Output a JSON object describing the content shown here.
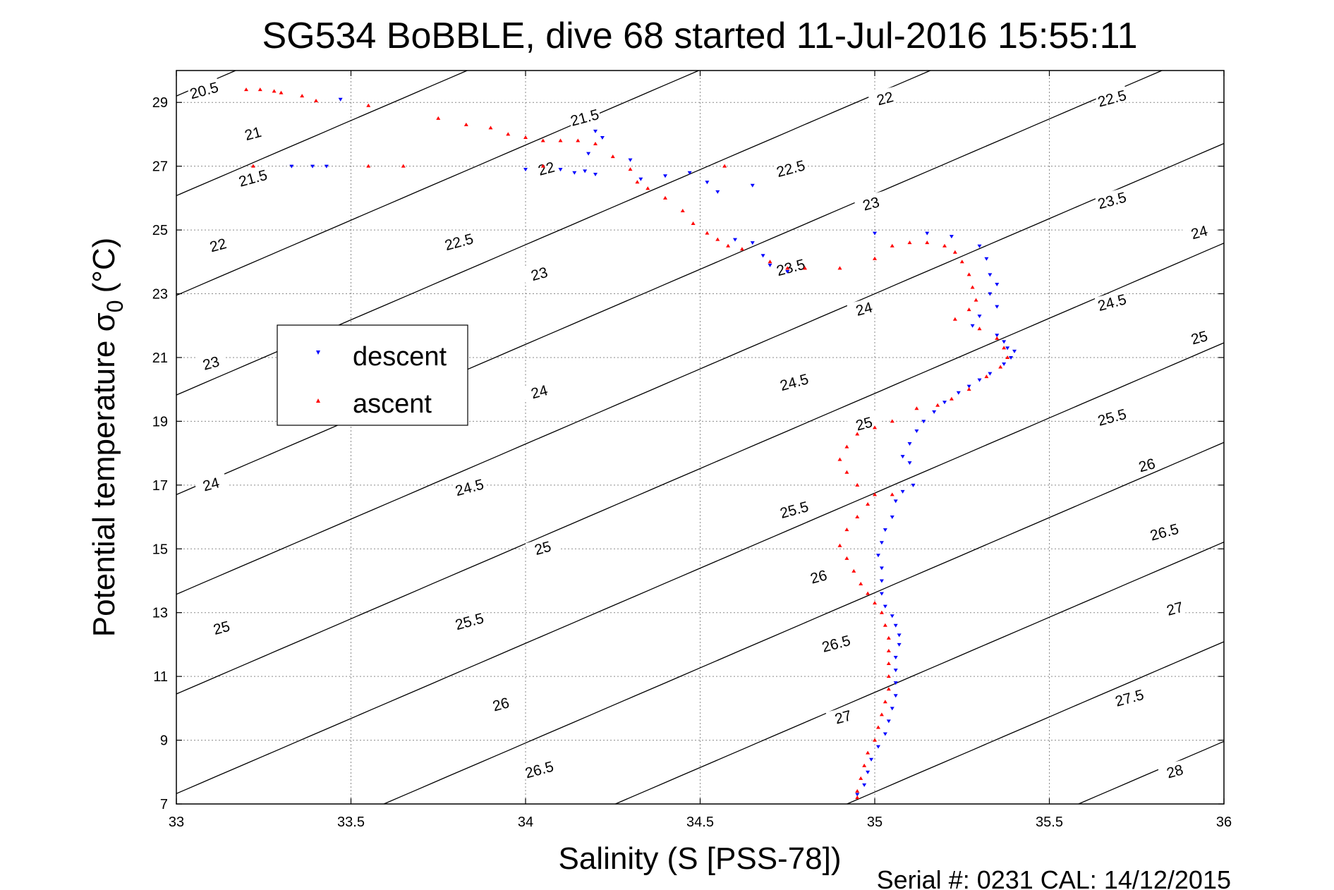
{
  "chart_data": {
    "type": "scatter",
    "title": "SG534 BoBBLE, dive 68 started 11-Jul-2016 15:55:11",
    "xlabel": "Salinity (S [PSS-78])",
    "ylabel_main": "Potential temperature σ",
    "ylabel_sub": "0",
    "ylabel_unit": "(°C)",
    "xlim": [
      33,
      36
    ],
    "ylim": [
      7,
      30
    ],
    "x_ticks": [
      33,
      33.5,
      34,
      34.5,
      35,
      35.5,
      36
    ],
    "x_tick_labels": [
      "33",
      "33.5",
      "34",
      "34.5",
      "35",
      "35.5",
      "36"
    ],
    "y_ticks": [
      7,
      9,
      11,
      13,
      15,
      17,
      19,
      21,
      23,
      25,
      27,
      29
    ],
    "y_tick_labels": [
      "7",
      "9",
      "11",
      "13",
      "15",
      "17",
      "19",
      "21",
      "23",
      "25",
      "27",
      "29"
    ],
    "grid": true,
    "legend_position": "middle-left",
    "footer": "Serial #: 0231  CAL: 14/12/2015",
    "density_contours": {
      "levels": [
        20.5,
        21,
        21.5,
        22,
        22.5,
        23,
        23.5,
        24,
        24.5,
        25,
        25.5,
        26,
        26.5,
        27,
        27.5,
        28
      ],
      "labels": [
        {
          "text": "20.5",
          "s": 33.08,
          "t": 29.35
        },
        {
          "text": "21",
          "s": 33.22,
          "t": 28.0
        },
        {
          "text": "21.5",
          "s": 33.22,
          "t": 26.6
        },
        {
          "text": "22",
          "s": 33.12,
          "t": 24.5
        },
        {
          "text": "23",
          "s": 33.1,
          "t": 20.8
        },
        {
          "text": "24",
          "s": 33.1,
          "t": 17.0
        },
        {
          "text": "25",
          "s": 33.13,
          "t": 12.5
        },
        {
          "text": "21.5",
          "s": 34.17,
          "t": 28.5
        },
        {
          "text": "22",
          "s": 34.06,
          "t": 26.9
        },
        {
          "text": "22.5",
          "s": 33.81,
          "t": 24.6
        },
        {
          "text": "23",
          "s": 34.04,
          "t": 23.6
        },
        {
          "text": "24",
          "s": 34.04,
          "t": 19.9
        },
        {
          "text": "24.5",
          "s": 33.84,
          "t": 16.9
        },
        {
          "text": "25",
          "s": 34.05,
          "t": 15.0
        },
        {
          "text": "25.5",
          "s": 33.84,
          "t": 12.7
        },
        {
          "text": "26",
          "s": 33.93,
          "t": 10.1
        },
        {
          "text": "26.5",
          "s": 34.04,
          "t": 8.05
        },
        {
          "text": "22",
          "s": 35.03,
          "t": 29.1
        },
        {
          "text": "22.5",
          "s": 34.76,
          "t": 26.9
        },
        {
          "text": "23",
          "s": 34.99,
          "t": 25.8
        },
        {
          "text": "23.5",
          "s": 34.76,
          "t": 23.8
        },
        {
          "text": "24",
          "s": 34.97,
          "t": 22.5
        },
        {
          "text": "24.5",
          "s": 34.77,
          "t": 20.2
        },
        {
          "text": "25",
          "s": 34.97,
          "t": 18.9
        },
        {
          "text": "25.5",
          "s": 34.77,
          "t": 16.2
        },
        {
          "text": "26",
          "s": 34.84,
          "t": 14.1
        },
        {
          "text": "26.5",
          "s": 34.89,
          "t": 12.0
        },
        {
          "text": "27",
          "s": 34.91,
          "t": 9.7
        },
        {
          "text": "22.5",
          "s": 35.68,
          "t": 29.1
        },
        {
          "text": "23.5",
          "s": 35.68,
          "t": 25.9
        },
        {
          "text": "24",
          "s": 35.93,
          "t": 24.9
        },
        {
          "text": "24.5",
          "s": 35.68,
          "t": 22.7
        },
        {
          "text": "25",
          "s": 35.93,
          "t": 21.6
        },
        {
          "text": "25.5",
          "s": 35.68,
          "t": 19.1
        },
        {
          "text": "26",
          "s": 35.78,
          "t": 17.6
        },
        {
          "text": "26.5",
          "s": 35.83,
          "t": 15.5
        },
        {
          "text": "27",
          "s": 35.86,
          "t": 13.1
        },
        {
          "text": "27.5",
          "s": 35.73,
          "t": 10.3
        },
        {
          "text": "28",
          "s": 35.86,
          "t": 8.0
        }
      ]
    },
    "series": [
      {
        "name": "descent",
        "color": "#0000ff",
        "marker": "triangle-down",
        "points": [
          [
            33.47,
            29.1
          ],
          [
            33.33,
            27.0
          ],
          [
            33.39,
            27.0
          ],
          [
            33.43,
            27.0
          ],
          [
            34.0,
            26.9
          ],
          [
            34.2,
            28.1
          ],
          [
            34.22,
            27.9
          ],
          [
            34.18,
            27.4
          ],
          [
            34.1,
            26.9
          ],
          [
            34.14,
            26.8
          ],
          [
            34.17,
            26.85
          ],
          [
            34.2,
            26.75
          ],
          [
            34.3,
            27.2
          ],
          [
            34.33,
            26.6
          ],
          [
            34.4,
            26.7
          ],
          [
            34.47,
            26.8
          ],
          [
            34.52,
            26.5
          ],
          [
            34.55,
            26.2
          ],
          [
            34.65,
            26.4
          ],
          [
            34.6,
            24.7
          ],
          [
            34.65,
            24.6
          ],
          [
            34.68,
            24.2
          ],
          [
            34.7,
            23.9
          ],
          [
            34.75,
            23.7
          ],
          [
            35.0,
            24.9
          ],
          [
            35.15,
            24.9
          ],
          [
            35.22,
            24.8
          ],
          [
            35.3,
            24.5
          ],
          [
            35.32,
            24.1
          ],
          [
            35.33,
            23.6
          ],
          [
            35.35,
            23.3
          ],
          [
            35.33,
            23.0
          ],
          [
            35.35,
            22.6
          ],
          [
            35.3,
            22.3
          ],
          [
            35.28,
            22.0
          ],
          [
            35.35,
            21.7
          ],
          [
            35.37,
            21.5
          ],
          [
            35.38,
            21.3
          ],
          [
            35.4,
            21.2
          ],
          [
            35.39,
            21.0
          ],
          [
            35.37,
            20.8
          ],
          [
            35.33,
            20.5
          ],
          [
            35.3,
            20.3
          ],
          [
            35.27,
            20.1
          ],
          [
            35.24,
            19.9
          ],
          [
            35.2,
            19.6
          ],
          [
            35.17,
            19.3
          ],
          [
            35.14,
            19.0
          ],
          [
            35.12,
            18.7
          ],
          [
            35.1,
            18.3
          ],
          [
            35.08,
            17.9
          ],
          [
            35.1,
            17.7
          ],
          [
            35.11,
            17.0
          ],
          [
            35.08,
            16.8
          ],
          [
            35.06,
            16.5
          ],
          [
            35.05,
            16.0
          ],
          [
            35.03,
            15.6
          ],
          [
            35.02,
            15.2
          ],
          [
            35.01,
            14.8
          ],
          [
            35.02,
            14.4
          ],
          [
            35.02,
            14.0
          ],
          [
            35.02,
            13.6
          ],
          [
            35.03,
            13.2
          ],
          [
            35.05,
            12.9
          ],
          [
            35.06,
            12.6
          ],
          [
            35.07,
            12.3
          ],
          [
            35.07,
            12.0
          ],
          [
            35.06,
            11.6
          ],
          [
            35.06,
            11.2
          ],
          [
            35.06,
            10.8
          ],
          [
            35.06,
            10.4
          ],
          [
            35.05,
            10.0
          ],
          [
            35.04,
            9.6
          ],
          [
            35.03,
            9.2
          ],
          [
            35.01,
            8.8
          ],
          [
            34.99,
            8.4
          ],
          [
            34.98,
            8.0
          ],
          [
            34.97,
            7.6
          ],
          [
            34.95,
            7.3
          ]
        ]
      },
      {
        "name": "ascent",
        "color": "#ff0000",
        "marker": "triangle-up",
        "points": [
          [
            33.2,
            29.4
          ],
          [
            33.24,
            29.4
          ],
          [
            33.28,
            29.35
          ],
          [
            33.3,
            29.3
          ],
          [
            33.36,
            29.2
          ],
          [
            33.4,
            29.05
          ],
          [
            33.55,
            28.9
          ],
          [
            33.75,
            28.5
          ],
          [
            33.83,
            28.3
          ],
          [
            33.9,
            28.2
          ],
          [
            33.95,
            28.0
          ],
          [
            34.0,
            27.9
          ],
          [
            34.05,
            27.8
          ],
          [
            34.1,
            27.8
          ],
          [
            34.15,
            27.8
          ],
          [
            34.2,
            27.7
          ],
          [
            34.25,
            27.3
          ],
          [
            34.3,
            26.9
          ],
          [
            34.32,
            26.5
          ],
          [
            34.35,
            26.3
          ],
          [
            34.4,
            26.0
          ],
          [
            34.45,
            25.6
          ],
          [
            34.48,
            25.2
          ],
          [
            34.52,
            24.9
          ],
          [
            34.55,
            24.7
          ],
          [
            34.58,
            24.5
          ],
          [
            34.62,
            24.4
          ],
          [
            33.22,
            27.0
          ],
          [
            33.55,
            27.0
          ],
          [
            33.65,
            27.0
          ],
          [
            34.05,
            27.0
          ],
          [
            34.57,
            27.0
          ],
          [
            34.7,
            24.0
          ],
          [
            34.75,
            23.8
          ],
          [
            34.8,
            23.8
          ],
          [
            34.9,
            23.8
          ],
          [
            35.0,
            24.1
          ],
          [
            35.05,
            24.5
          ],
          [
            35.1,
            24.6
          ],
          [
            35.15,
            24.6
          ],
          [
            35.2,
            24.5
          ],
          [
            35.23,
            24.3
          ],
          [
            35.25,
            24.0
          ],
          [
            35.27,
            23.6
          ],
          [
            35.28,
            23.2
          ],
          [
            35.29,
            22.8
          ],
          [
            35.27,
            22.5
          ],
          [
            35.23,
            22.2
          ],
          [
            35.3,
            21.9
          ],
          [
            35.35,
            21.6
          ],
          [
            35.37,
            21.3
          ],
          [
            35.38,
            21.0
          ],
          [
            35.36,
            20.7
          ],
          [
            35.32,
            20.4
          ],
          [
            35.27,
            20.0
          ],
          [
            35.22,
            19.7
          ],
          [
            35.18,
            19.5
          ],
          [
            35.12,
            19.4
          ],
          [
            35.05,
            19.0
          ],
          [
            35.0,
            18.8
          ],
          [
            34.95,
            18.6
          ],
          [
            34.92,
            18.2
          ],
          [
            34.9,
            17.8
          ],
          [
            34.92,
            17.4
          ],
          [
            34.95,
            17.0
          ],
          [
            35.0,
            16.7
          ],
          [
            35.05,
            16.7
          ],
          [
            34.98,
            16.4
          ],
          [
            34.95,
            16.0
          ],
          [
            34.92,
            15.6
          ],
          [
            34.9,
            15.1
          ],
          [
            34.92,
            14.7
          ],
          [
            34.94,
            14.3
          ],
          [
            34.96,
            13.9
          ],
          [
            34.98,
            13.6
          ],
          [
            35.0,
            13.3
          ],
          [
            35.02,
            13.0
          ],
          [
            35.03,
            12.6
          ],
          [
            35.04,
            12.2
          ],
          [
            35.04,
            11.8
          ],
          [
            35.04,
            11.4
          ],
          [
            35.04,
            11.0
          ],
          [
            35.04,
            10.6
          ],
          [
            35.03,
            10.2
          ],
          [
            35.02,
            9.8
          ],
          [
            35.01,
            9.4
          ],
          [
            35.0,
            9.0
          ],
          [
            34.98,
            8.6
          ],
          [
            34.97,
            8.2
          ],
          [
            34.96,
            7.8
          ],
          [
            34.95,
            7.4
          ],
          [
            34.95,
            7.2
          ]
        ]
      }
    ]
  }
}
